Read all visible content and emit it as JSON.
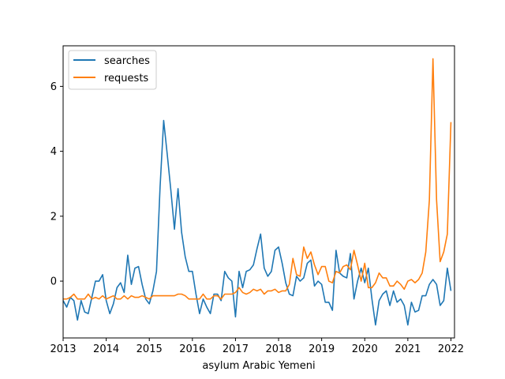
{
  "chart_data": {
    "type": "line",
    "xlabel": "asylum Arabic  Yemeni",
    "ylabel": "",
    "x_start": "2013-01",
    "x_end": "2022-02",
    "xlim": [
      2013.0,
      2022.083
    ],
    "ylim": [
      -1.75,
      7.25
    ],
    "x_ticks": [
      2013,
      2014,
      2015,
      2016,
      2017,
      2018,
      2019,
      2020,
      2021,
      2022
    ],
    "x_tick_labels": [
      "2013",
      "2014",
      "2015",
      "2016",
      "2017",
      "2018",
      "2019",
      "2020",
      "2021",
      "2022"
    ],
    "y_ticks": [
      0,
      2,
      4,
      6
    ],
    "y_tick_labels": [
      "0",
      "2",
      "4",
      "6"
    ],
    "grid": false,
    "legend_position": "upper-left",
    "legend": [
      "searches",
      "requests"
    ],
    "series": [
      {
        "name": "searches",
        "color": "#1f77b4",
        "values": [
          -0.6,
          -0.8,
          -0.5,
          -0.6,
          -1.2,
          -0.6,
          -0.95,
          -1.0,
          -0.5,
          0.0,
          0.0,
          0.2,
          -0.6,
          -1.0,
          -0.7,
          -0.2,
          -0.05,
          -0.35,
          0.8,
          -0.1,
          0.4,
          0.45,
          -0.1,
          -0.55,
          -0.7,
          -0.3,
          0.3,
          2.9,
          4.95,
          3.9,
          2.8,
          1.6,
          2.85,
          1.5,
          0.75,
          0.3,
          0.3,
          -0.4,
          -1.0,
          -0.55,
          -0.8,
          -1.0,
          -0.4,
          -0.4,
          -0.6,
          0.3,
          0.1,
          0.0,
          -1.1,
          0.3,
          -0.2,
          0.3,
          0.35,
          0.5,
          1.0,
          1.45,
          0.4,
          0.15,
          0.3,
          0.95,
          1.05,
          0.55,
          -0.05,
          -0.4,
          -0.45,
          0.15,
          0.0,
          0.1,
          0.55,
          0.65,
          -0.15,
          0.0,
          -0.1,
          -0.65,
          -0.65,
          -0.9,
          0.95,
          0.25,
          0.15,
          0.1,
          0.85,
          -0.55,
          0.0,
          0.4,
          -0.05,
          0.4,
          -0.55,
          -1.35,
          -0.6,
          -0.4,
          -0.3,
          -0.75,
          -0.3,
          -0.65,
          -0.55,
          -0.75,
          -1.35,
          -0.65,
          -0.95,
          -0.9,
          -0.45,
          -0.45,
          -0.1,
          0.05,
          -0.1,
          -0.75,
          -0.6,
          0.4,
          -0.3
        ]
      },
      {
        "name": "requests",
        "color": "#ff7f0e",
        "values": [
          -0.55,
          -0.55,
          -0.5,
          -0.4,
          -0.55,
          -0.55,
          -0.55,
          -0.4,
          -0.55,
          -0.5,
          -0.55,
          -0.45,
          -0.55,
          -0.5,
          -0.45,
          -0.55,
          -0.55,
          -0.45,
          -0.55,
          -0.45,
          -0.5,
          -0.5,
          -0.45,
          -0.5,
          -0.55,
          -0.45,
          -0.45,
          -0.45,
          -0.45,
          -0.45,
          -0.45,
          -0.45,
          -0.4,
          -0.4,
          -0.45,
          -0.55,
          -0.55,
          -0.55,
          -0.55,
          -0.4,
          -0.55,
          -0.55,
          -0.45,
          -0.45,
          -0.55,
          -0.4,
          -0.4,
          -0.4,
          -0.35,
          -0.2,
          -0.35,
          -0.4,
          -0.35,
          -0.25,
          -0.3,
          -0.25,
          -0.4,
          -0.3,
          -0.3,
          -0.25,
          -0.35,
          -0.3,
          -0.3,
          -0.1,
          0.7,
          0.2,
          0.15,
          1.05,
          0.7,
          0.9,
          0.5,
          0.2,
          0.45,
          0.45,
          0.0,
          -0.05,
          0.3,
          0.25,
          0.45,
          0.5,
          0.35,
          0.95,
          0.5,
          0.0,
          0.55,
          -0.2,
          -0.2,
          -0.05,
          0.25,
          0.1,
          0.1,
          -0.15,
          -0.15,
          0.0,
          -0.1,
          -0.25,
          0.0,
          0.05,
          -0.05,
          0.05,
          0.25,
          0.9,
          2.5,
          6.85,
          2.5,
          0.6,
          0.9,
          1.45,
          4.9
        ]
      }
    ]
  }
}
